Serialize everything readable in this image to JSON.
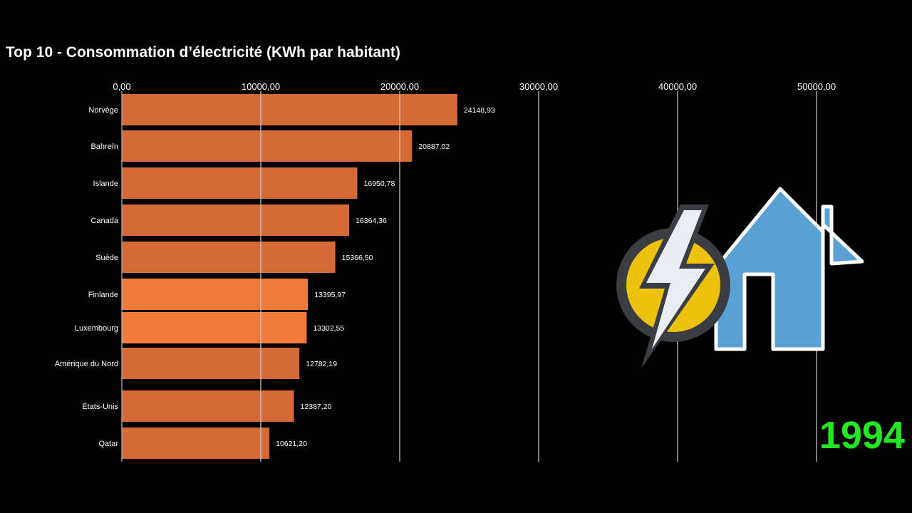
{
  "chart_data": {
    "type": "bar",
    "orientation": "horizontal",
    "title": "Top 10 - Consommation d’électricité (KWh par habitant)",
    "xlim": [
      0,
      50000
    ],
    "x_ticks": [
      "0,00",
      "10000,00",
      "20000,00",
      "30000,00",
      "40000,00",
      "50000,00"
    ],
    "x_tick_values": [
      0,
      10000,
      20000,
      30000,
      40000,
      50000
    ],
    "grid": true,
    "bar_color": "#d46a35",
    "highlight_color": "#f07a3c",
    "categories": [
      "Norvège",
      "Bahreïn",
      "Islande",
      "Canada",
      "Suède",
      "Finlande",
      "Luxembourg",
      "Amérique du Nord",
      "États-Unis",
      "Qatar"
    ],
    "values": [
      24148.93,
      20887.02,
      16950.78,
      16364.36,
      15366.5,
      13395.97,
      13302.55,
      12782.19,
      12387.2,
      10621.2
    ],
    "value_labels": [
      "24148,93",
      "20887,02",
      "16950,78",
      "16364,36",
      "15366,50",
      "13395,97",
      "13302,55",
      "12782,19",
      "12387,20",
      "10621,20"
    ]
  },
  "year": "1994",
  "year_color": "#22e81f",
  "icon": "electricity-house-icon"
}
